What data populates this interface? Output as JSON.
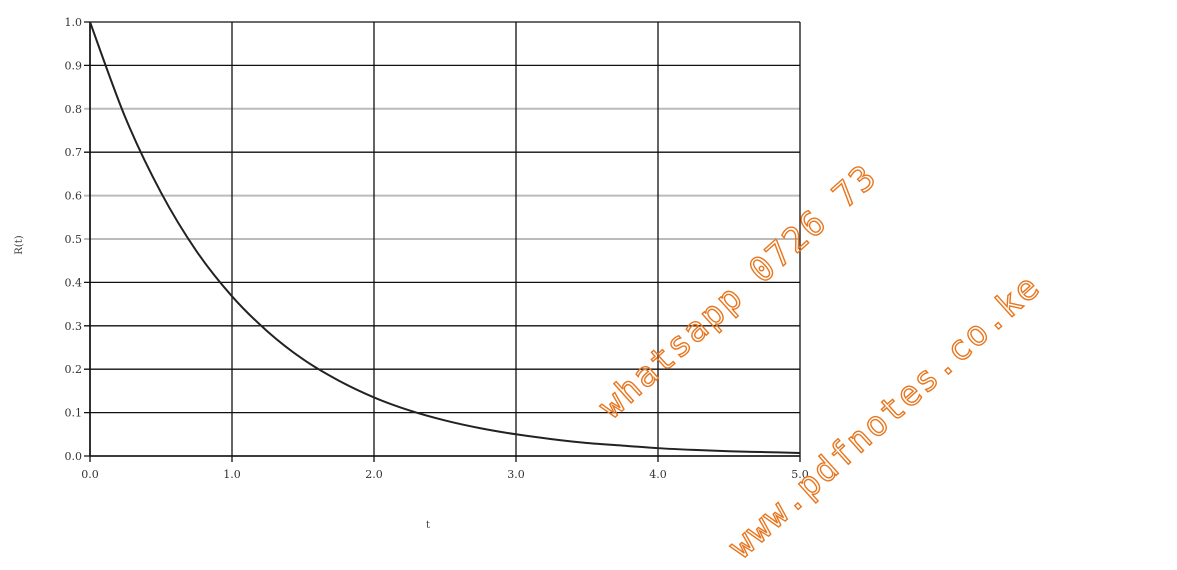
{
  "chart_data": {
    "type": "line",
    "title": "",
    "xlabel": "t",
    "ylabel": "R(t)",
    "xlim": [
      0,
      5
    ],
    "ylim": [
      0,
      1
    ],
    "xticks": [
      0,
      1,
      2,
      3,
      4,
      5
    ],
    "xtick_labels": [
      "0.0",
      "1.0",
      "2.0",
      "3.0",
      "4.0",
      "5.0"
    ],
    "yticks": [
      0,
      0.1,
      0.2,
      0.3,
      0.4,
      0.5,
      0.6,
      0.7,
      0.8,
      0.9,
      1.0
    ],
    "ytick_labels": [
      "0.0",
      "0.1",
      "0.2",
      "0.3",
      "0.4",
      "0.5",
      "0.6",
      "0.7",
      "0.8",
      "0.9",
      "1.0"
    ],
    "grid": true,
    "series": [
      {
        "x": [
          0,
          0.25,
          0.5,
          0.75,
          1.0,
          1.25,
          1.5,
          1.75,
          2.0,
          2.25,
          2.5,
          2.75,
          3.0,
          3.25,
          3.5,
          3.75,
          4.0,
          4.25,
          4.5,
          4.75,
          5.0
        ],
        "y": [
          1.0,
          0.779,
          0.607,
          0.472,
          0.368,
          0.287,
          0.223,
          0.174,
          0.135,
          0.105,
          0.082,
          0.064,
          0.05,
          0.039,
          0.03,
          0.024,
          0.018,
          0.014,
          0.011,
          0.009,
          0.007
        ],
        "color": "#222222"
      }
    ]
  },
  "watermarks": [
    "whatsapp 0726 73",
    "www.pdfnotes.co.ke"
  ],
  "colors": {
    "watermark": "#e8761e",
    "grid_major": "#111111",
    "grid_minor": "#bbbbbb"
  }
}
